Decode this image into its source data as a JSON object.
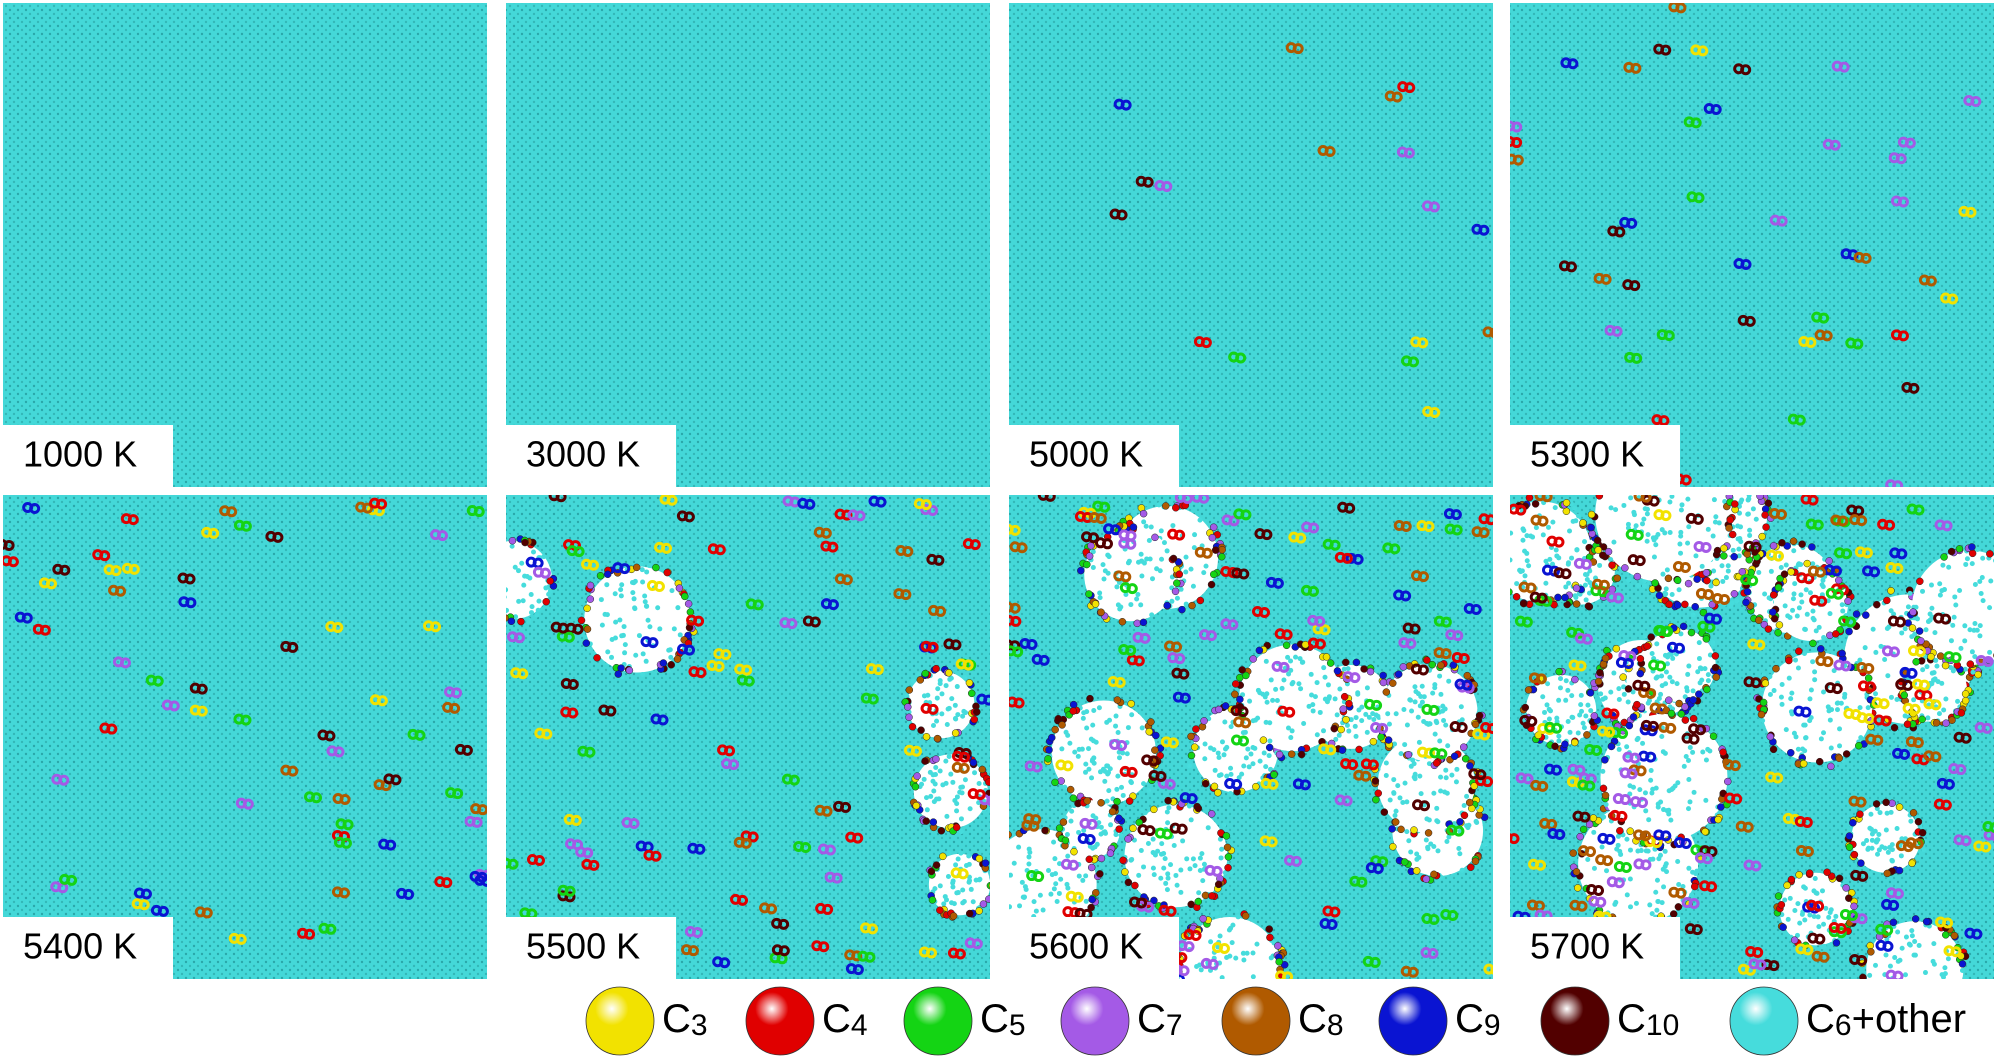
{
  "panels": [
    {
      "label": "1000 K"
    },
    {
      "label": "3000 K"
    },
    {
      "label": "5000 K"
    },
    {
      "label": "5300 K"
    },
    {
      "label": "5400 K"
    },
    {
      "label": "5500 K"
    },
    {
      "label": "5600 K"
    },
    {
      "label": "5700 K"
    }
  ],
  "legend": [
    {
      "base": "C",
      "sub": "3",
      "color": "#f2e200"
    },
    {
      "base": "C",
      "sub": "4",
      "color": "#e00000"
    },
    {
      "base": "C",
      "sub": "5",
      "color": "#14d414"
    },
    {
      "base": "C",
      "sub": "7",
      "color": "#a45ae6"
    },
    {
      "base": "C",
      "sub": "8",
      "color": "#b05a00"
    },
    {
      "base": "C",
      "sub": "9",
      "color": "#0a14d2"
    },
    {
      "base": "C",
      "sub": "10",
      "color": "#520000"
    },
    {
      "base": "C",
      "sub": "6",
      "suffix": "+other",
      "color": "#46dcdc"
    }
  ]
}
